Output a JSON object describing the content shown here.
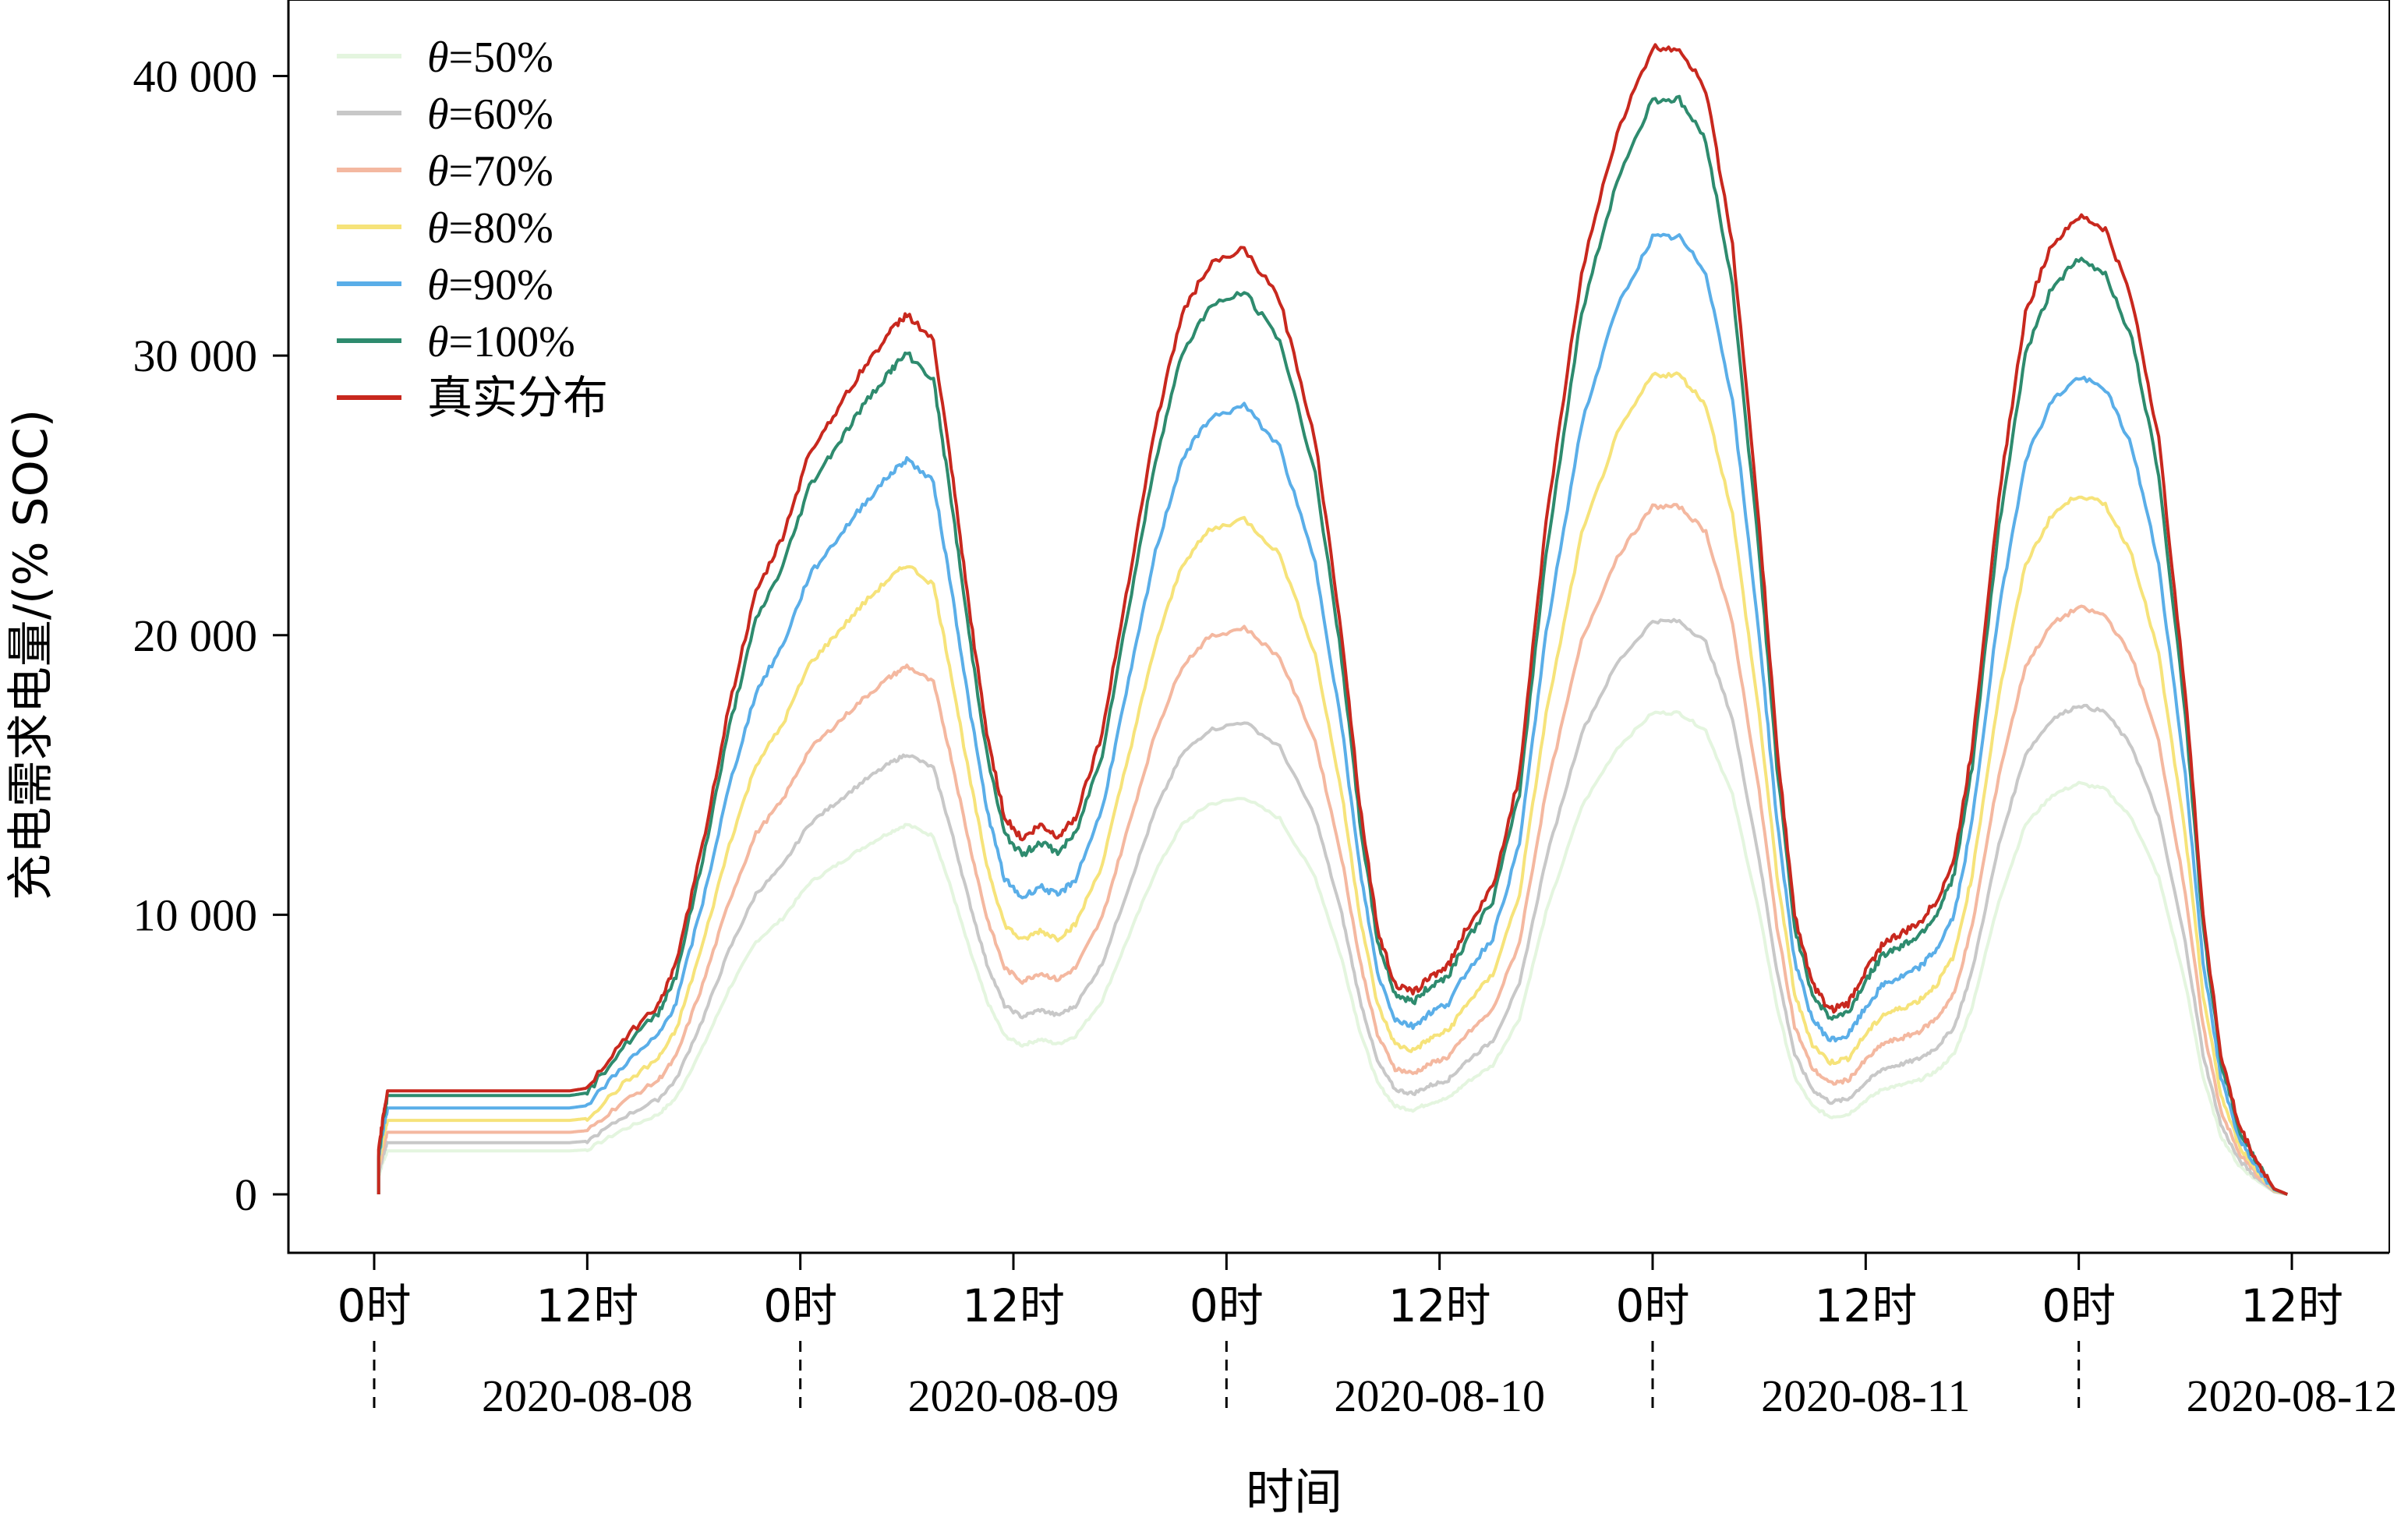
{
  "chart_data": {
    "type": "line",
    "title": "",
    "xlabel": "时间",
    "ylabel": "充电需求电量/(% SOC)",
    "ylim": [
      0,
      43500
    ],
    "yticks": [
      {
        "value": 0,
        "label": "0"
      },
      {
        "value": 10000,
        "label": "10 000"
      },
      {
        "value": 20000,
        "label": "20 000"
      },
      {
        "value": 30000,
        "label": "30 000"
      },
      {
        "value": 40000,
        "label": "40 000"
      }
    ],
    "xlim": [
      "2020-08-08T00:00",
      "2020-08-12T12:00"
    ],
    "hour_ticks": [
      {
        "date": "2020-08-08T00:00",
        "label": "0时"
      },
      {
        "date": "2020-08-08T12:00",
        "label": "12时"
      },
      {
        "date": "2020-08-09T00:00",
        "label": "0时"
      },
      {
        "date": "2020-08-09T12:00",
        "label": "12时"
      },
      {
        "date": "2020-08-10T00:00",
        "label": "0时"
      },
      {
        "date": "2020-08-10T12:00",
        "label": "12时"
      },
      {
        "date": "2020-08-11T00:00",
        "label": "0时"
      },
      {
        "date": "2020-08-11T12:00",
        "label": "12时"
      },
      {
        "date": "2020-08-12T00:00",
        "label": "0时"
      },
      {
        "date": "2020-08-12T12:00",
        "label": "12时"
      }
    ],
    "day_labels": [
      {
        "date": "2020-08-08",
        "label": "2020-08-08"
      },
      {
        "date": "2020-08-09",
        "label": "2020-08-09"
      },
      {
        "date": "2020-08-10",
        "label": "2020-08-10"
      },
      {
        "date": "2020-08-11",
        "label": "2020-08-11"
      },
      {
        "date": "2020-08-12",
        "label": "2020-08-12"
      }
    ],
    "grid": false,
    "legend_position": "top-left",
    "series_labels": [
      {
        "prefix": "θ",
        "suffix": "=50%"
      },
      {
        "prefix": "θ",
        "suffix": "=60%"
      },
      {
        "prefix": "θ",
        "suffix": "=70%"
      },
      {
        "prefix": "θ",
        "suffix": "=80%"
      },
      {
        "prefix": "θ",
        "suffix": "=90%"
      },
      {
        "prefix": "θ",
        "suffix": "=100%"
      },
      {
        "prefix": "",
        "suffix": "真实分布"
      }
    ],
    "series": [
      {
        "name": "θ=50%",
        "color": "#e4f5df",
        "scale": 0.42
      },
      {
        "name": "θ=60%",
        "color": "#c8c8c8",
        "scale": 0.5
      },
      {
        "name": "θ=70%",
        "color": "#f4b8a0",
        "scale": 0.6
      },
      {
        "name": "θ=80%",
        "color": "#f6e37a",
        "scale": 0.715
      },
      {
        "name": "θ=90%",
        "color": "#5aaee8",
        "scale": 0.835
      },
      {
        "name": "θ=100%",
        "color": "#2e8b6e",
        "scale": 0.955
      },
      {
        "name": "真实分布",
        "color": "#c8281e",
        "scale": 1.0
      }
    ],
    "reference_series_x": [
      "2020-08-08T00:15",
      "2020-08-08T00:30",
      "2020-08-08T00:45",
      "2020-08-08T01:30",
      "2020-08-08T03:00",
      "2020-08-08T05:00",
      "2020-08-08T07:00",
      "2020-08-08T09:00",
      "2020-08-08T11:00",
      "2020-08-08T12:00",
      "2020-08-08T14:00",
      "2020-08-08T16:00",
      "2020-08-08T17:00",
      "2020-08-08T18:30",
      "2020-08-08T20:00",
      "2020-08-08T21:30",
      "2020-08-08T23:00",
      "2020-08-09T00:30",
      "2020-08-09T02:00",
      "2020-08-09T03:30",
      "2020-08-09T05:00",
      "2020-08-09T06:00",
      "2020-08-09T07:30",
      "2020-08-09T08:30",
      "2020-08-09T09:30",
      "2020-08-09T10:30",
      "2020-08-09T11:30",
      "2020-08-09T12:30",
      "2020-08-09T13:30",
      "2020-08-09T14:30",
      "2020-08-09T15:30",
      "2020-08-09T17:00",
      "2020-08-09T18:30",
      "2020-08-09T20:00",
      "2020-08-09T21:30",
      "2020-08-09T23:00",
      "2020-08-10T01:00",
      "2020-08-10T03:00",
      "2020-08-10T05:00",
      "2020-08-10T06:30",
      "2020-08-10T07:30",
      "2020-08-10T08:30",
      "2020-08-10T09:30",
      "2020-08-10T10:30",
      "2020-08-10T11:30",
      "2020-08-10T12:30",
      "2020-08-10T13:30",
      "2020-08-10T15:00",
      "2020-08-10T16:30",
      "2020-08-10T18:00",
      "2020-08-10T20:00",
      "2020-08-10T22:00",
      "2020-08-11T00:00",
      "2020-08-11T01:30",
      "2020-08-11T03:00",
      "2020-08-11T04:30",
      "2020-08-11T06:00",
      "2020-08-11T07:00",
      "2020-08-11T08:00",
      "2020-08-11T09:00",
      "2020-08-11T10:00",
      "2020-08-11T11:00",
      "2020-08-11T12:00",
      "2020-08-11T13:00",
      "2020-08-11T14:00",
      "2020-08-11T15:00",
      "2020-08-11T16:00",
      "2020-08-11T17:00",
      "2020-08-11T18:00",
      "2020-08-11T19:30",
      "2020-08-11T21:00",
      "2020-08-11T22:30",
      "2020-08-12T00:00",
      "2020-08-12T01:30",
      "2020-08-12T03:00",
      "2020-08-12T04:30",
      "2020-08-12T06:00",
      "2020-08-12T07:00",
      "2020-08-12T08:00",
      "2020-08-12T09:00",
      "2020-08-12T10:00",
      "2020-08-12T11:00",
      "2020-08-12T11:45"
    ],
    "reference_series_y": [
      1500,
      2800,
      3700,
      3700,
      3700,
      3700,
      3700,
      3700,
      3700,
      3800,
      5500,
      6800,
      8200,
      12500,
      17500,
      21500,
      23500,
      26500,
      28000,
      29500,
      30800,
      31500,
      30500,
      26000,
      21000,
      16500,
      13500,
      12700,
      13200,
      12800,
      13500,
      16500,
      22000,
      27500,
      31500,
      33200,
      33800,
      32000,
      27000,
      20000,
      14000,
      9500,
      7500,
      7200,
      7800,
      8200,
      9500,
      11000,
      15000,
      24000,
      33000,
      38000,
      41000,
      41000,
      39500,
      34000,
      24000,
      16000,
      10000,
      7500,
      6600,
      6800,
      8000,
      9000,
      9300,
      9700,
      10500,
      12000,
      16000,
      25000,
      31500,
      34000,
      35000,
      34500,
      32000,
      27000,
      18000,
      10000,
      5000,
      2500,
      1200,
      200,
      0
    ]
  }
}
